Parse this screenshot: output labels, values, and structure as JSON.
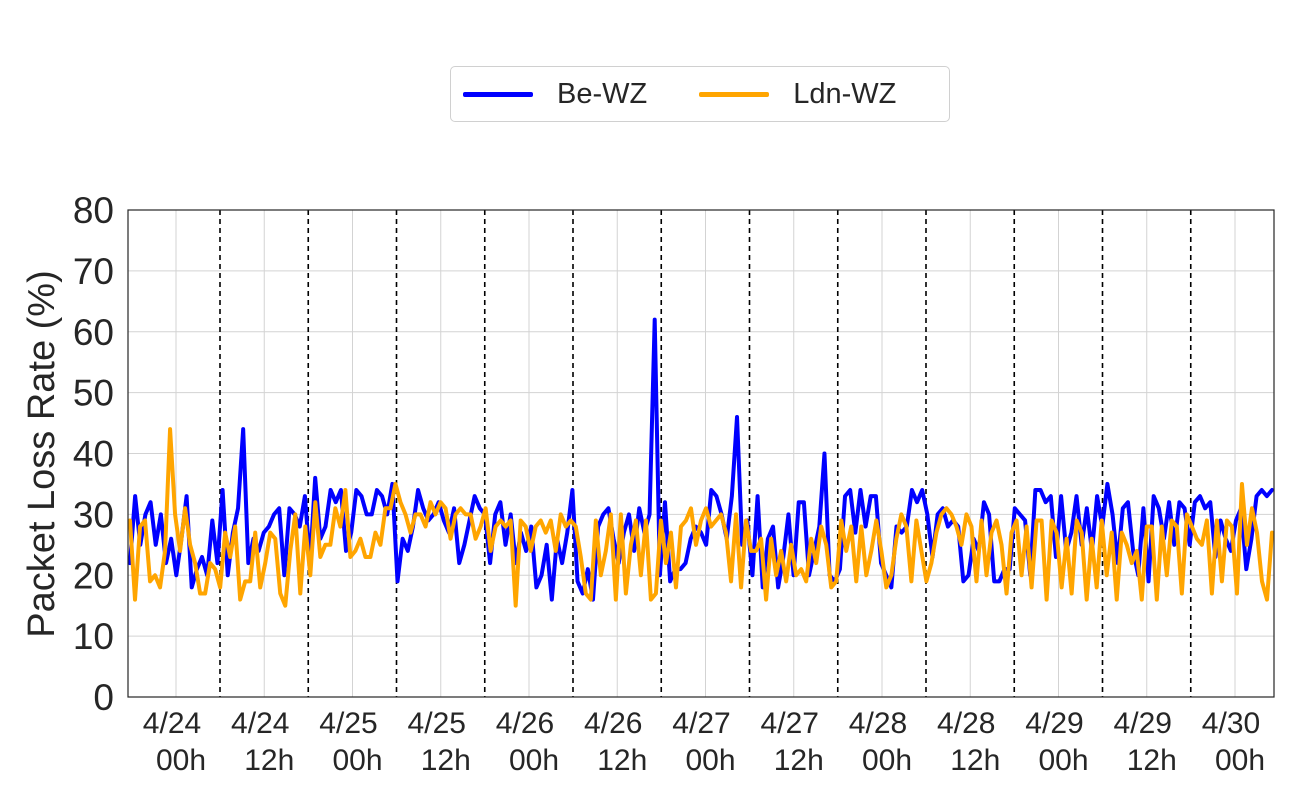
{
  "chart_data": {
    "type": "line",
    "title": "",
    "xlabel": "",
    "ylabel": "Packet Loss Rate (%)",
    "ylim": [
      0,
      80
    ],
    "yticks": [
      0,
      10,
      20,
      30,
      40,
      50,
      60,
      70,
      80
    ],
    "grid": true,
    "legend_position": "top-center",
    "x_tick_labels": [
      [
        "4/24",
        "00h"
      ],
      [
        "4/24",
        "12h"
      ],
      [
        "4/25",
        "00h"
      ],
      [
        "4/25",
        "12h"
      ],
      [
        "4/26",
        "00h"
      ],
      [
        "4/26",
        "12h"
      ],
      [
        "4/27",
        "00h"
      ],
      [
        "4/27",
        "12h"
      ],
      [
        "4/28",
        "00h"
      ],
      [
        "4/28",
        "12h"
      ],
      [
        "4/29",
        "00h"
      ],
      [
        "4/29",
        "12h"
      ],
      [
        "4/30",
        "00h"
      ]
    ],
    "day_separator_style": "black dashed vertical lines between tick labels",
    "series": [
      {
        "name": "Be-WZ",
        "color": "#0000ff",
        "values": [
          22,
          33,
          25,
          30,
          32,
          25,
          30,
          22,
          26,
          20,
          26,
          33,
          18,
          21,
          23,
          20,
          29,
          22,
          34,
          20,
          27,
          31,
          44,
          22,
          26,
          24,
          27,
          28,
          30,
          31,
          20,
          31,
          30,
          28,
          33,
          22,
          36,
          26,
          28,
          34,
          32,
          34,
          24,
          27,
          34,
          33,
          30,
          30,
          34,
          33,
          30,
          35,
          19,
          26,
          24,
          28,
          34,
          31,
          29,
          30,
          32,
          29,
          27,
          31,
          22,
          25,
          29,
          33,
          31,
          30,
          22,
          30,
          32,
          25,
          30,
          22,
          27,
          24,
          28,
          18,
          20,
          25,
          16,
          26,
          22,
          27,
          34,
          19,
          17,
          21,
          16,
          28,
          30,
          31,
          26,
          22,
          27,
          30,
          24,
          31,
          27,
          30,
          62,
          20,
          32,
          19,
          21,
          21,
          22,
          26,
          28,
          27,
          25,
          34,
          33,
          30,
          26,
          33,
          46,
          25,
          29,
          20,
          33,
          18,
          26,
          28,
          18,
          23,
          30,
          20,
          32,
          32,
          20,
          24,
          28,
          40,
          20,
          19,
          21,
          33,
          34,
          27,
          34,
          28,
          33,
          33,
          22,
          20,
          18,
          28,
          27,
          28,
          34,
          32,
          34,
          30,
          23,
          30,
          31,
          28,
          29,
          28,
          19,
          20,
          26,
          24,
          32,
          30,
          19,
          19,
          21,
          21,
          31,
          30,
          29,
          20,
          34,
          34,
          32,
          33,
          23,
          33,
          24,
          27,
          33,
          25,
          31,
          24,
          33,
          28,
          35,
          30,
          22,
          31,
          32,
          24,
          20,
          31,
          19,
          33,
          31,
          26,
          32,
          25,
          32,
          31,
          25,
          32,
          33,
          31,
          32,
          23,
          29,
          26,
          24,
          29,
          31,
          21,
          26,
          33,
          34,
          33,
          34
        ]
      },
      {
        "name": "Ldn-WZ",
        "color": "#ffa500",
        "values": [
          29,
          16,
          28,
          29,
          19,
          20,
          18,
          24,
          44,
          30,
          24,
          31,
          25,
          22,
          17,
          17,
          22,
          21,
          18,
          27,
          23,
          28,
          16,
          19,
          19,
          27,
          18,
          22,
          27,
          26,
          17,
          15,
          24,
          30,
          17,
          28,
          20,
          32,
          23,
          25,
          25,
          31,
          28,
          34,
          23,
          24,
          26,
          23,
          23,
          27,
          25,
          31,
          31,
          35,
          32,
          30,
          27,
          30,
          30,
          28,
          32,
          30,
          32,
          31,
          26,
          30,
          31,
          30,
          30,
          26,
          28,
          31,
          24,
          28,
          29,
          28,
          29,
          15,
          29,
          28,
          24,
          28,
          29,
          27,
          29,
          24,
          30,
          28,
          29,
          28,
          23,
          17,
          16,
          29,
          20,
          24,
          30,
          16,
          30,
          17,
          25,
          29,
          20,
          29,
          16,
          17,
          29,
          22,
          27,
          18,
          28,
          29,
          31,
          25,
          29,
          31,
          28,
          29,
          30,
          27,
          19,
          30,
          18,
          29,
          24,
          24,
          26,
          16,
          26,
          20,
          24,
          19,
          25,
          20,
          21,
          19,
          26,
          22,
          28,
          25,
          18,
          19,
          29,
          24,
          28,
          19,
          28,
          20,
          24,
          29,
          24,
          18,
          20,
          26,
          30,
          28,
          19,
          29,
          24,
          19,
          22,
          27,
          30,
          31,
          30,
          28,
          25,
          30,
          28,
          19,
          29,
          20,
          27,
          29,
          25,
          17,
          27,
          29,
          20,
          28,
          18,
          29,
          29,
          16,
          29,
          27,
          18,
          26,
          17,
          29,
          27,
          16,
          26,
          18,
          29,
          20,
          27,
          16,
          27,
          25,
          22,
          24,
          16,
          28,
          28,
          16,
          28,
          20,
          29,
          28,
          17,
          30,
          28,
          26,
          25,
          29,
          17,
          29,
          19,
          29,
          28,
          17,
          35,
          25,
          31,
          27,
          19,
          16,
          27
        ]
      }
    ]
  }
}
